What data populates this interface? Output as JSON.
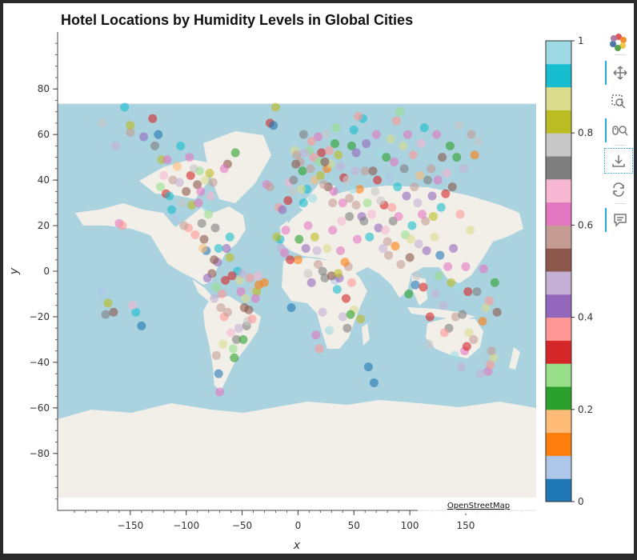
{
  "chart_data": {
    "type": "scatter",
    "title": "Hotel Locations by Humidity Levels in Global Cities",
    "xlabel": "x",
    "ylabel": "y",
    "xlim": [
      -215,
      213
    ],
    "ylim": [
      -105,
      105
    ],
    "xticks": [
      -150,
      -100,
      -50,
      0,
      50,
      100,
      150
    ],
    "yticks": [
      80,
      60,
      40,
      20,
      0,
      -20,
      -40,
      -60,
      -80
    ],
    "xtick_labels": [
      "−150",
      "−100",
      "−50",
      "0",
      "50",
      "100",
      "150"
    ],
    "ytick_labels": [
      "80",
      "60",
      "40",
      "20",
      "0",
      "−20",
      "−40",
      "−60",
      "−80"
    ],
    "basemap": "OpenStreetMap",
    "point_alpha": 0.6,
    "colorbar": {
      "range": [
        0,
        1
      ],
      "ticks": [
        0,
        0.2,
        0.4,
        0.6,
        0.8,
        1
      ],
      "tick_labels": [
        "0",
        "0.2",
        "0.4",
        "0.6",
        "0.8",
        "1"
      ],
      "palette": [
        "#1f77b4",
        "#aec7e8",
        "#ff7f0e",
        "#ffbb78",
        "#2ca02c",
        "#98df8a",
        "#d62728",
        "#ff9896",
        "#9467bd",
        "#c5b0d5",
        "#8c564b",
        "#c49c94",
        "#e377c2",
        "#f7b6d2",
        "#7f7f7f",
        "#c7c7c7",
        "#bcbd22",
        "#dbdb8d",
        "#17becf",
        "#9edae5"
      ]
    },
    "points": [
      [
        -176,
        -9,
        0.05
      ],
      [
        -172,
        -19,
        0.7
      ],
      [
        -160,
        21,
        0.62
      ],
      [
        -157,
        20,
        0.35
      ],
      [
        -150,
        61,
        0.55
      ],
      [
        -145,
        -18,
        0.9
      ],
      [
        -140,
        -24,
        0.02
      ],
      [
        -150,
        64,
        0.8
      ],
      [
        -135,
        58,
        0.95
      ],
      [
        -125,
        60,
        0.02
      ],
      [
        -122,
        49,
        0.8
      ],
      [
        -118,
        34,
        0.3
      ],
      [
        -112,
        40,
        0.55
      ],
      [
        -110,
        23,
        0.06
      ],
      [
        -105,
        55,
        0.9
      ],
      [
        -104,
        30,
        0.75
      ],
      [
        -98,
        19,
        0.35
      ],
      [
        -97,
        50,
        0.6
      ],
      [
        -90,
        38,
        0.5
      ],
      [
        -88,
        44,
        0.25
      ],
      [
        -86,
        21,
        0.72
      ],
      [
        -84,
        14,
        0.5
      ],
      [
        -82,
        9,
        0.02
      ],
      [
        -79,
        43,
        0.8
      ],
      [
        -77,
        -1,
        0.52
      ],
      [
        -75,
        -12,
        0.45
      ],
      [
        -73,
        -37,
        0.55
      ],
      [
        -71,
        -45,
        0.02
      ],
      [
        -70,
        -53,
        0.62
      ],
      [
        -66,
        -20,
        0.35
      ],
      [
        -64,
        10,
        0.42
      ],
      [
        -61,
        15,
        0.9
      ],
      [
        -58,
        -34,
        0.25
      ],
      [
        -56,
        52,
        0.2
      ],
      [
        -52,
        -4,
        0.85
      ],
      [
        -48,
        -16,
        0.5
      ],
      [
        -46,
        -24,
        0.7
      ],
      [
        -40,
        -8,
        0.75
      ],
      [
        -37,
        -9,
        0.82
      ],
      [
        -28,
        38,
        0.6
      ],
      [
        -25,
        65,
        0.3
      ],
      [
        -22,
        64,
        0.02
      ],
      [
        -17,
        28,
        0.38
      ],
      [
        -16,
        14,
        0.92
      ],
      [
        -8,
        39,
        0.65
      ],
      [
        -6,
        -16,
        0.02
      ],
      [
        -3,
        53,
        0.85
      ],
      [
        0,
        5,
        0.1
      ],
      [
        2,
        48,
        0.55
      ],
      [
        5,
        60,
        0.7
      ],
      [
        8,
        36,
        0.9
      ],
      [
        10,
        53,
        0.25
      ],
      [
        12,
        -5,
        0.4
      ],
      [
        15,
        40,
        0.15
      ],
      [
        18,
        59,
        0.6
      ],
      [
        19,
        -34,
        0.35
      ],
      [
        22,
        -18,
        0.48
      ],
      [
        25,
        60,
        0.78
      ],
      [
        27,
        37,
        0.52
      ],
      [
        28,
        -26,
        0.98
      ],
      [
        31,
        30,
        0.58
      ],
      [
        33,
        -4,
        0.08
      ],
      [
        36,
        51,
        0.8
      ],
      [
        38,
        9,
        0.62
      ],
      [
        40,
        -20,
        0.45
      ],
      [
        43,
        -12,
        0.3
      ],
      [
        46,
        24,
        0.7
      ],
      [
        48,
        55,
        0.2
      ],
      [
        50,
        -17,
        0.88
      ],
      [
        52,
        29,
        0.55
      ],
      [
        55,
        36,
        0.12
      ],
      [
        58,
        67,
        0.9
      ],
      [
        61,
        56,
        0.42
      ],
      [
        63,
        -42,
        0.02
      ],
      [
        66,
        25,
        0.65
      ],
      [
        69,
        35,
        0.78
      ],
      [
        72,
        19,
        0.4
      ],
      [
        73,
        52,
        0.95
      ],
      [
        77,
        29,
        0.3
      ],
      [
        80,
        13,
        0.55
      ],
      [
        82,
        41,
        0.05
      ],
      [
        85,
        22,
        0.7
      ],
      [
        88,
        66,
        0.35
      ],
      [
        90,
        24,
        0.6
      ],
      [
        94,
        55,
        0.85
      ],
      [
        96,
        16,
        0.25
      ],
      [
        100,
        6,
        0.5
      ],
      [
        102,
        20,
        0.92
      ],
      [
        105,
        -6,
        0.02
      ],
      [
        107,
        30,
        0.45
      ],
      [
        110,
        56,
        0.68
      ],
      [
        112,
        -7,
        0.3
      ],
      [
        114,
        22,
        0.55
      ],
      [
        117,
        -32,
        0.75
      ],
      [
        120,
        33,
        0.4
      ],
      [
        122,
        15,
        0.88
      ],
      [
        125,
        40,
        0.6
      ],
      [
        127,
        7,
        0.02
      ],
      [
        130,
        -15,
        0.48
      ],
      [
        132,
        34,
        0.33
      ],
      [
        135,
        -25,
        0.72
      ],
      [
        138,
        37,
        0.52
      ],
      [
        140,
        -37,
        0.95
      ],
      [
        142,
        50,
        0.2
      ],
      [
        144,
        64,
        0.78
      ],
      [
        146,
        -42,
        0.45
      ],
      [
        149,
        -35,
        0.6
      ],
      [
        151,
        -33,
        0.3
      ],
      [
        153,
        -27,
        0.85
      ],
      [
        155,
        60,
        0.55
      ],
      [
        160,
        -9,
        0.7
      ],
      [
        165,
        -22,
        0.1
      ],
      [
        170,
        -44,
        0.62
      ],
      [
        172,
        -41,
        0.35
      ],
      [
        175,
        -38,
        0.88
      ],
      [
        178,
        -18,
        0.5
      ],
      [
        -175,
        65,
        0.75
      ],
      [
        -163,
        55,
        0.45
      ],
      [
        -155,
        72,
        0.9
      ],
      [
        -130,
        67,
        0.3
      ],
      [
        -120,
        42,
        0.68
      ],
      [
        -115,
        33,
        0.92
      ],
      [
        -108,
        46,
        0.15
      ],
      [
        -100,
        35,
        0.52
      ],
      [
        -95,
        29,
        0.8
      ],
      [
        -92,
        16,
        0.38
      ],
      [
        -87,
        35,
        0.62
      ],
      [
        -82,
        28,
        0.98
      ],
      [
        -80,
        25,
        0.25
      ],
      [
        -76,
        39,
        0.55
      ],
      [
        -74,
        19,
        0.72
      ],
      [
        -72,
        4,
        0.4
      ],
      [
        -69,
        -16,
        0.58
      ],
      [
        -67,
        -32,
        0.85
      ],
      [
        -65,
        -4,
        0.3
      ],
      [
        -63,
        47,
        0.5
      ],
      [
        -60,
        -27,
        0.65
      ],
      [
        -57,
        -38,
        0.2
      ],
      [
        -54,
        0,
        0.92
      ],
      [
        -50,
        -1,
        0.45
      ],
      [
        -45,
        -22,
        0.78
      ],
      [
        -43,
        -3,
        0.35
      ],
      [
        -38,
        -12,
        0.6
      ],
      [
        -35,
        -6,
        0.1
      ],
      [
        -20,
        72,
        0.82
      ],
      [
        -15,
        10,
        0.48
      ],
      [
        -12,
        8,
        0.6
      ],
      [
        -9,
        31,
        0.3
      ],
      [
        -4,
        40,
        0.7
      ],
      [
        -1,
        51,
        0.55
      ],
      [
        3,
        36,
        0.88
      ],
      [
        4,
        44,
        0.22
      ],
      [
        7,
        10,
        0.4
      ],
      [
        9,
        -1,
        0.75
      ],
      [
        11,
        45,
        0.58
      ],
      [
        13,
        32,
        0.95
      ],
      [
        14,
        50,
        0.35
      ],
      [
        16,
        -28,
        0.62
      ],
      [
        17,
        9,
        0.45
      ],
      [
        20,
        42,
        0.8
      ],
      [
        21,
        52,
        0.3
      ],
      [
        23,
        38,
        0.55
      ],
      [
        24,
        -3,
        0.7
      ],
      [
        26,
        45,
        0.12
      ],
      [
        29,
        47,
        0.85
      ],
      [
        30,
        -2,
        0.5
      ],
      [
        32,
        35,
        0.62
      ],
      [
        34,
        63,
        0.25
      ],
      [
        35,
        -8,
        0.9
      ],
      [
        37,
        -3,
        0.42
      ],
      [
        39,
        22,
        0.66
      ],
      [
        41,
        41,
        0.3
      ],
      [
        44,
        40,
        0.78
      ],
      [
        45,
        2,
        0.55
      ],
      [
        47,
        -19,
        0.2
      ],
      [
        49,
        36,
        0.95
      ],
      [
        51,
        44,
        0.48
      ],
      [
        53,
        14,
        0.6
      ],
      [
        54,
        68,
        0.35
      ],
      [
        56,
        -21,
        0.82
      ],
      [
        57,
        24,
        0.4
      ],
      [
        59,
        22,
        0.7
      ],
      [
        60,
        44,
        0.55
      ],
      [
        62,
        30,
        0.25
      ],
      [
        64,
        15,
        0.92
      ],
      [
        67,
        44,
        0.5
      ],
      [
        68,
        -49,
        0.02
      ],
      [
        70,
        60,
        0.62
      ],
      [
        71,
        40,
        0.3
      ],
      [
        74,
        31,
        0.78
      ],
      [
        76,
        10,
        0.45
      ],
      [
        78,
        18,
        0.68
      ],
      [
        79,
        50,
        0.2
      ],
      [
        81,
        7,
        0.55
      ],
      [
        83,
        58,
        0.85
      ],
      [
        84,
        28,
        0.38
      ],
      [
        86,
        48,
        0.6
      ],
      [
        87,
        11,
        0.12
      ],
      [
        89,
        37,
        0.9
      ],
      [
        91,
        70,
        0.28
      ],
      [
        92,
        3,
        0.55
      ],
      [
        95,
        45,
        0.72
      ],
      [
        97,
        33,
        0.42
      ],
      [
        98,
        60,
        0.6
      ],
      [
        99,
        -10,
        0.2
      ],
      [
        101,
        14,
        0.85
      ],
      [
        103,
        51,
        0.35
      ],
      [
        104,
        37,
        0.58
      ],
      [
        106,
        -2,
        0.78
      ],
      [
        108,
        12,
        0.48
      ],
      [
        109,
        42,
        0.15
      ],
      [
        111,
        25,
        0.6
      ],
      [
        113,
        63,
        0.92
      ],
      [
        115,
        9,
        0.4
      ],
      [
        116,
        40,
        0.7
      ],
      [
        118,
        -20,
        0.3
      ],
      [
        119,
        45,
        0.55
      ],
      [
        121,
        24,
        0.82
      ],
      [
        123,
        -10,
        0.45
      ],
      [
        124,
        60,
        0.62
      ],
      [
        126,
        -2,
        0.25
      ],
      [
        128,
        28,
        0.9
      ],
      [
        129,
        50,
        0.52
      ],
      [
        131,
        -27,
        0.38
      ],
      [
        133,
        43,
        0.68
      ],
      [
        134,
        2,
        0.6
      ],
      [
        136,
        55,
        0.2
      ],
      [
        137,
        -5,
        0.8
      ],
      [
        139,
        10,
        0.42
      ],
      [
        141,
        -20,
        0.58
      ],
      [
        143,
        -7,
        0.95
      ],
      [
        145,
        25,
        0.35
      ],
      [
        147,
        -19,
        0.7
      ],
      [
        148,
        45,
        0.48
      ],
      [
        150,
        2,
        0.62
      ],
      [
        152,
        -9,
        0.3
      ],
      [
        154,
        18,
        0.85
      ],
      [
        157,
        -30,
        0.55
      ],
      [
        158,
        51,
        0.12
      ],
      [
        161,
        57,
        0.75
      ],
      [
        163,
        -45,
        0.45
      ],
      [
        166,
        1,
        0.6
      ],
      [
        168,
        -16,
        0.88
      ],
      [
        171,
        -13,
        0.35
      ],
      [
        173,
        -35,
        0.58
      ],
      [
        176,
        -5,
        0.2
      ],
      [
        -170,
        -14,
        0.82
      ],
      [
        -165,
        -18,
        0.5
      ],
      [
        -148,
        -15,
        0.65
      ],
      [
        -138,
        59,
        0.4
      ],
      [
        -128,
        55,
        0.72
      ],
      [
        -123,
        37,
        0.25
      ],
      [
        -117,
        49,
        0.62
      ],
      [
        -113,
        27,
        0.9
      ],
      [
        -106,
        39,
        0.45
      ],
      [
        -102,
        20,
        0.55
      ],
      [
        -96,
        42,
        0.3
      ],
      [
        -93,
        45,
        0.78
      ],
      [
        -89,
        30,
        0.6
      ],
      [
        -85,
        10,
        0.15
      ],
      [
        -83,
        40,
        0.85
      ],
      [
        -81,
        -3,
        0.42
      ],
      [
        -78,
        33,
        0.68
      ],
      [
        -75,
        5,
        0.5
      ],
      [
        -73,
        -7,
        0.25
      ],
      [
        -71,
        10,
        0.92
      ],
      [
        -68,
        -10,
        0.38
      ],
      [
        -66,
        45,
        0.62
      ],
      [
        -63,
        -18,
        0.55
      ],
      [
        -61,
        6,
        0.8
      ],
      [
        -59,
        -2,
        0.3
      ],
      [
        -55,
        -30,
        0.72
      ],
      [
        -53,
        -25,
        0.45
      ],
      [
        -51,
        -9,
        0.6
      ],
      [
        -49,
        -30,
        0.2
      ],
      [
        -47,
        -12,
        0.88
      ],
      [
        -44,
        -17,
        0.52
      ],
      [
        -41,
        -21,
        0.35
      ],
      [
        -36,
        -2,
        0.68
      ],
      [
        -30,
        -5,
        0.1
      ],
      [
        -25,
        37,
        0.58
      ],
      [
        -19,
        15,
        0.8
      ],
      [
        -14,
        27,
        0.42
      ],
      [
        -11,
        18,
        0.62
      ],
      [
        -7,
        5,
        0.3
      ],
      [
        -5,
        35,
        0.75
      ],
      [
        -2,
        47,
        0.5
      ],
      [
        1,
        14,
        0.22
      ],
      [
        5,
        30,
        0.92
      ],
      [
        6,
        52,
        0.45
      ],
      [
        9,
        20,
        0.6
      ],
      [
        12,
        57,
        0.35
      ],
      [
        15,
        15,
        0.82
      ],
      [
        18,
        3,
        0.55
      ],
      [
        19,
        48,
        0.28
      ],
      [
        22,
        0,
        0.7
      ],
      [
        24,
        48,
        0.5
      ],
      [
        26,
        10,
        0.88
      ],
      [
        28,
        53,
        0.38
      ],
      [
        31,
        18,
        0.62
      ],
      [
        33,
        56,
        0.2
      ],
      [
        36,
        -1,
        0.8
      ],
      [
        38,
        46,
        0.45
      ],
      [
        40,
        30,
        0.6
      ],
      [
        42,
        4,
        0.12
      ],
      [
        44,
        -25,
        0.72
      ],
      [
        46,
        32,
        0.55
      ],
      [
        48,
        -5,
        0.35
      ],
      [
        50,
        62,
        0.9
      ],
      [
        52,
        52,
        0.42
      ]
    ]
  },
  "attribution": "OpenStreetMap",
  "toolbar": {
    "logo_icon": "bokeh-logo-icon",
    "tools": [
      "pan-icon",
      "box-zoom-icon",
      "wheel-zoom-icon",
      "save-icon",
      "reset-icon",
      "hover-icon"
    ]
  }
}
